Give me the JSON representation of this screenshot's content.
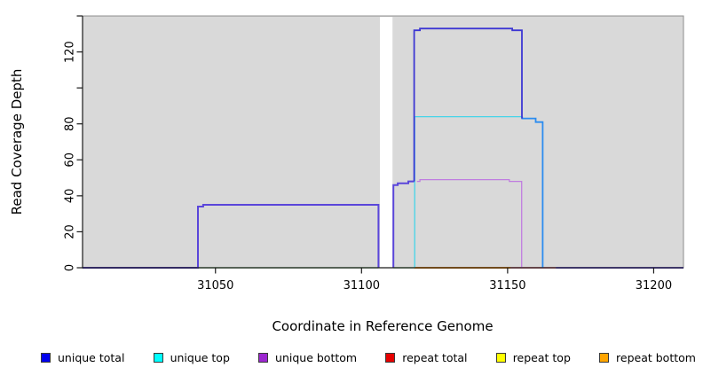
{
  "chart_data": {
    "type": "line",
    "subtype": "step-coverage",
    "title": "",
    "xlabel": "Coordinate in Reference Genome",
    "ylabel": "Read Coverage Depth",
    "xlim": [
      31004.5,
      31210.2
    ],
    "ylim": [
      0,
      140
    ],
    "grid": "off",
    "panel_background": "#d9d9d9",
    "gap_region": {
      "x1": 31106.3,
      "x2": 31110.6,
      "color": "#ffffff"
    },
    "x_ticks": {
      "values": [
        31050,
        31100,
        31150,
        31200
      ],
      "labels": [
        "31050",
        "31100",
        "31150",
        "31200"
      ]
    },
    "y_ticks": {
      "values": [
        0,
        20,
        40,
        60,
        80,
        100,
        120,
        140
      ],
      "labels": [
        "0",
        "20",
        "40",
        "60",
        "80",
        "",
        "120",
        ""
      ]
    },
    "series": [
      {
        "name": "green-zero-baseline-left",
        "color": "#8fd08f",
        "width": 1.5,
        "points": [
          [
            31044,
            0
          ],
          [
            31105.8,
            0
          ]
        ]
      },
      {
        "name": "green-zero-baseline-mid",
        "color": "#8fd08f",
        "width": 1.5,
        "points": [
          [
            31110.9,
            0
          ],
          [
            31118,
            0
          ]
        ]
      },
      {
        "name": "repeat-bottom-zero",
        "color": "#ff9d20",
        "width": 2,
        "points": [
          [
            31118,
            0
          ],
          [
            31151,
            0
          ]
        ]
      },
      {
        "name": "repeat-total-zero",
        "color": "#e23a55",
        "width": 1.6,
        "points": [
          [
            31151,
            0
          ],
          [
            31166.5,
            0
          ]
        ]
      },
      {
        "name": "total-zero-baseline-right",
        "color": "#7b68ea",
        "width": 2,
        "points": [
          [
            31166.5,
            0
          ],
          [
            31210.2,
            0
          ]
        ]
      },
      {
        "name": "unique-bottom",
        "color": "#c07de0",
        "width": 1.3,
        "points": [
          [
            31119,
            48
          ],
          [
            31120,
            48
          ],
          [
            31120,
            49
          ],
          [
            31150.6,
            49
          ],
          [
            31150.6,
            48
          ],
          [
            31154.8,
            48
          ],
          [
            31154.8,
            0
          ]
        ]
      },
      {
        "name": "unique-top",
        "color": "#45d4e8",
        "width": 1.3,
        "points": [
          [
            31118.2,
            0
          ],
          [
            31118.2,
            84
          ],
          [
            31154.8,
            84
          ]
        ]
      },
      {
        "name": "total-right-shoulder",
        "color": "#2b8cf0",
        "width": 1.8,
        "points": [
          [
            31155,
            84
          ],
          [
            31155,
            83
          ],
          [
            31159.6,
            83
          ],
          [
            31159.6,
            81
          ],
          [
            31162,
            81
          ],
          [
            31162,
            0
          ]
        ]
      },
      {
        "name": "unique-total-left-plateau",
        "color": "#5a46da",
        "width": 2,
        "points": [
          [
            31004.5,
            0
          ],
          [
            31044,
            0
          ],
          [
            31044,
            34
          ],
          [
            31045.8,
            34
          ],
          [
            31045.8,
            35
          ],
          [
            31105.8,
            35
          ],
          [
            31105.8,
            0
          ]
        ]
      },
      {
        "name": "unique-total-gap-step",
        "color": "#5a46da",
        "width": 2,
        "points": [
          [
            31110.9,
            0
          ],
          [
            31110.9,
            46
          ],
          [
            31112.4,
            46
          ],
          [
            31112.4,
            47
          ],
          [
            31116,
            47
          ],
          [
            31116,
            48
          ],
          [
            31118,
            48
          ]
        ]
      },
      {
        "name": "unique-total-peak",
        "color": "#3d37d3",
        "width": 1.8,
        "points": [
          [
            31118,
            48
          ],
          [
            31118,
            132
          ],
          [
            31120,
            132
          ],
          [
            31120,
            133
          ],
          [
            31151.6,
            133
          ],
          [
            31151.6,
            132
          ],
          [
            31154.9,
            132
          ],
          [
            31154.9,
            83
          ]
        ]
      }
    ],
    "legend": {
      "position": "bottom",
      "items": [
        {
          "label": "unique total",
          "color": "#0000ee"
        },
        {
          "label": "unique top",
          "color": "#00ffff"
        },
        {
          "label": "unique bottom",
          "color": "#9c27d0"
        },
        {
          "label": "repeat total",
          "color": "#e60000"
        },
        {
          "label": "repeat top",
          "color": "#ffff00"
        },
        {
          "label": "repeat bottom",
          "color": "#ffa500"
        }
      ]
    }
  }
}
